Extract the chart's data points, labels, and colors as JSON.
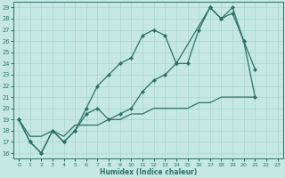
{
  "xlabel": "Humidex (Indice chaleur)",
  "bg_color": "#c5e8e3",
  "grid_color": "#a8d4ce",
  "line_color": "#2d7068",
  "xlim": [
    -0.5,
    23.5
  ],
  "ylim": [
    15.5,
    29.5
  ],
  "xticks": [
    0,
    1,
    2,
    3,
    4,
    5,
    6,
    7,
    8,
    9,
    10,
    11,
    12,
    13,
    14,
    15,
    16,
    17,
    18,
    19,
    20,
    21,
    22,
    23
  ],
  "yticks": [
    16,
    17,
    18,
    19,
    20,
    21,
    22,
    23,
    24,
    25,
    26,
    27,
    28,
    29
  ],
  "curve1_x": [
    0,
    1,
    2,
    3,
    4,
    5,
    6,
    7,
    8,
    9,
    10,
    11,
    12,
    13,
    14,
    15,
    16,
    17,
    18,
    19,
    20,
    21
  ],
  "curve1_y": [
    19,
    17,
    16,
    18,
    17,
    18,
    20,
    22,
    23,
    24,
    24.5,
    26.5,
    27,
    26.5,
    24,
    24,
    27,
    29,
    28,
    28.5,
    26,
    23.5
  ],
  "curve2_x": [
    0,
    1,
    2,
    3,
    4,
    5,
    6,
    7,
    8,
    9,
    10,
    11,
    12,
    13,
    14,
    17,
    18,
    19,
    20,
    21
  ],
  "curve2_y": [
    19,
    17,
    16,
    18,
    17,
    18,
    19.5,
    20,
    19,
    19.5,
    20,
    21.5,
    22.5,
    23,
    24,
    29,
    28,
    29,
    26,
    21
  ],
  "curve3_x": [
    0,
    1,
    2,
    3,
    4,
    5,
    6,
    7,
    8,
    9,
    10,
    11,
    12,
    13,
    14,
    15,
    16,
    17,
    18,
    19,
    20,
    21
  ],
  "curve3_y": [
    19,
    17.5,
    17.5,
    18,
    17.5,
    18.5,
    18.5,
    18.5,
    19,
    19,
    19.5,
    19.5,
    20,
    20,
    20,
    20,
    20.5,
    20.5,
    21,
    21,
    21,
    21
  ]
}
